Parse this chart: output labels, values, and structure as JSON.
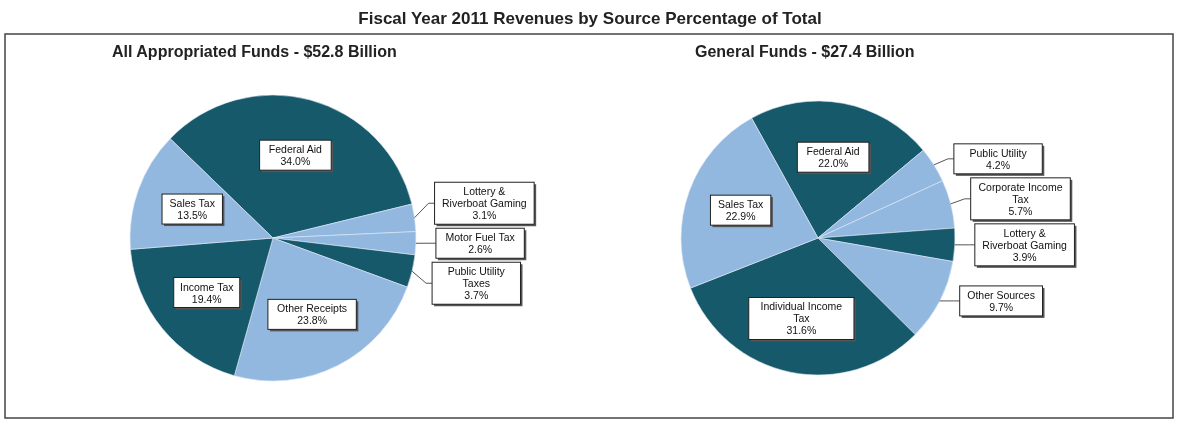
{
  "chart_data": [
    {
      "type": "pie",
      "title": "All Appropriated Funds - $52.8 Billion",
      "annotations": [
        "Fiscal Year 2011 Revenues by Source Percentage of Total"
      ],
      "categories": [
        "Federal Aid",
        "Lottery & Riverboat Gaming",
        "Motor Fuel Tax",
        "Public Utility Taxes",
        "Other Receipts",
        "Income Tax",
        "Sales Tax"
      ],
      "values": [
        34.0,
        3.1,
        2.6,
        3.7,
        23.8,
        19.4,
        13.5
      ],
      "value_labels": [
        "34.0%",
        "3.1%",
        "2.6%",
        "3.7%",
        "23.8%",
        "19.4%",
        "13.5%"
      ],
      "colors": [
        "#15596b",
        "#93b8e0",
        "#93b8e0",
        "#15596b",
        "#93b8e0",
        "#15596b",
        "#93b8e0"
      ]
    },
    {
      "type": "pie",
      "title": "General Funds - $27.4 Billion",
      "categories": [
        "Federal Aid",
        "Public Utility",
        "Corporate Income Tax",
        "Lottery & Riverboat Gaming",
        "Other Sources",
        "Individual Income Tax",
        "Sales Tax"
      ],
      "values": [
        22.0,
        4.2,
        5.7,
        3.9,
        9.7,
        31.6,
        22.9
      ],
      "value_labels": [
        "22.0%",
        "4.2%",
        "5.7%",
        "3.9%",
        "9.7%",
        "31.6%",
        "22.9%"
      ],
      "colors": [
        "#15596b",
        "#93b8e0",
        "#93b8e0",
        "#15596b",
        "#93b8e0",
        "#15596b",
        "#93b8e0"
      ]
    }
  ]
}
